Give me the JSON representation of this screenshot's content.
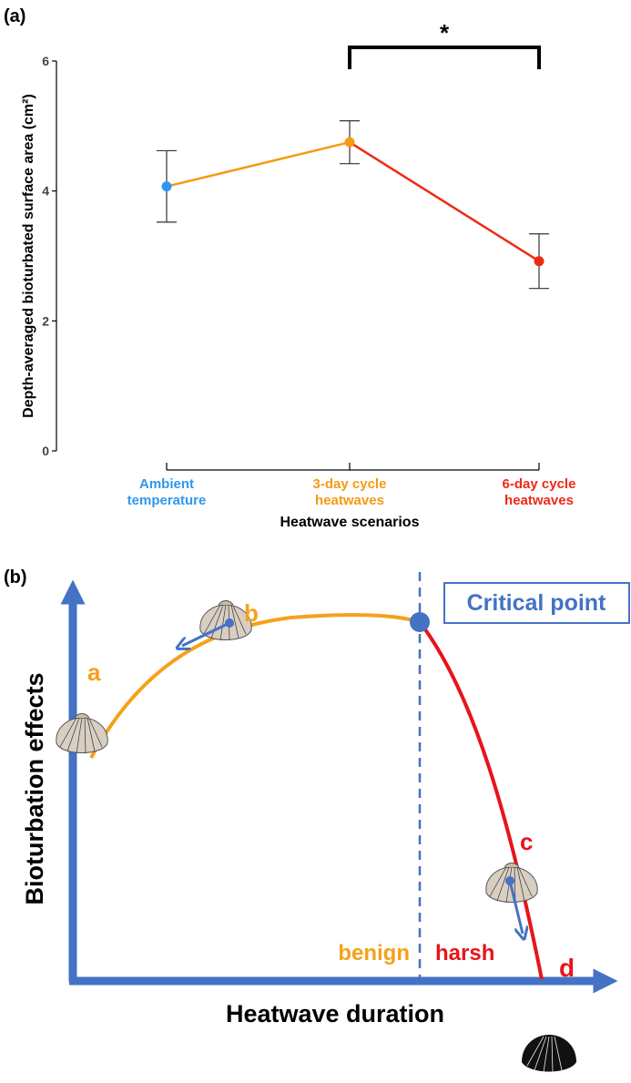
{
  "chart_data": {
    "type": "line",
    "panel_label": "(a)",
    "ylabel": "Depth-averaged bioturbated surface area (cm²)",
    "xlabel": "Heatwave scenarios",
    "categories": [
      [
        "Ambient",
        "temperature"
      ],
      [
        "3-day cycle",
        "heatwaves"
      ],
      [
        "6-day cycle",
        "heatwaves"
      ]
    ],
    "values": [
      4.07,
      4.75,
      2.92
    ],
    "errors": [
      0.55,
      0.33,
      0.42
    ],
    "colors": [
      "#2f97ee",
      "#f59a12",
      "#ee2a16"
    ],
    "ylim": [
      0,
      6
    ],
    "yticks": [
      0,
      2,
      4,
      6
    ],
    "significance": "*"
  },
  "diagram": {
    "panel_label": "(b)",
    "ylabel": "Bioturbation effects",
    "xlabel": "Heatwave duration",
    "critical_point": "Critical point",
    "stages": [
      "a",
      "b",
      "c",
      "d"
    ],
    "zones": [
      "benign",
      "harsh"
    ]
  }
}
